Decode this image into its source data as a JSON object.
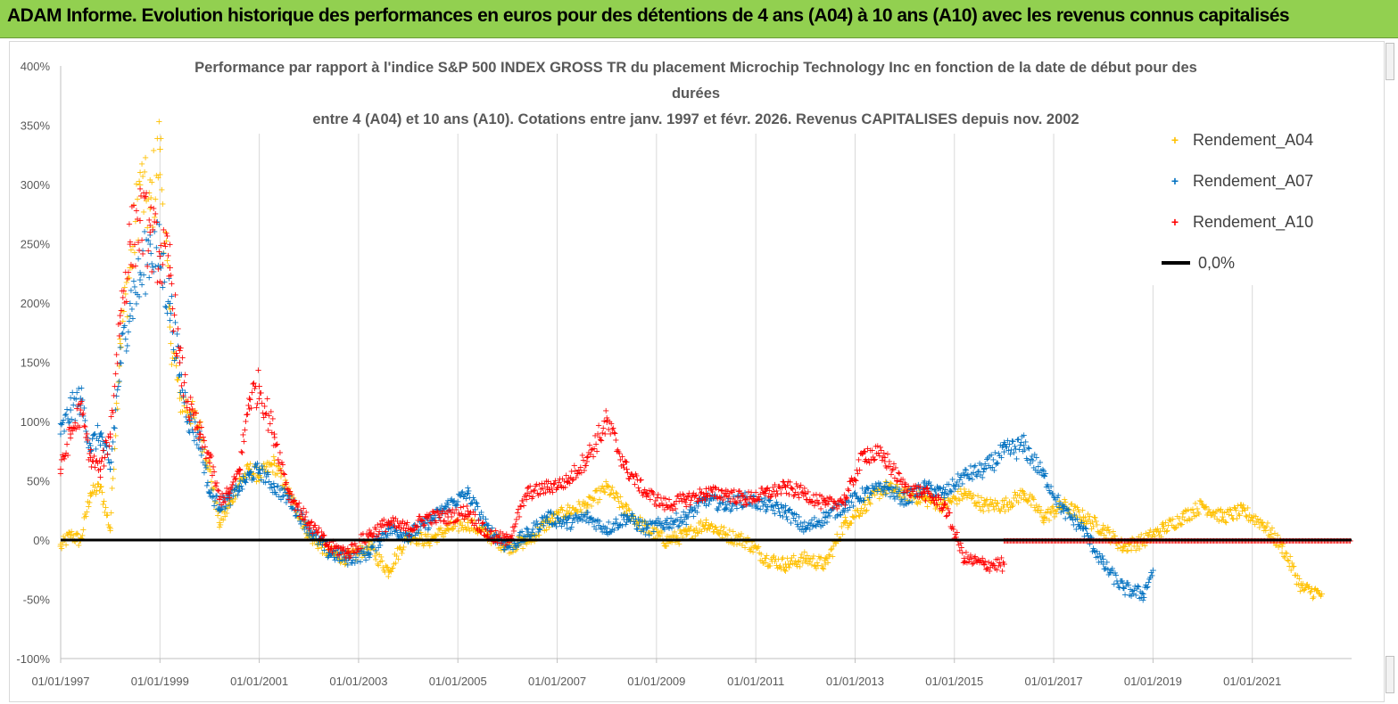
{
  "header": {
    "banner_title": "ADAM Informe. Evolution historique des performances en euros pour des détentions de 4 ans (A04) à 10 ans (A10) avec les revenus connus capitalisés"
  },
  "colors": {
    "banner_bg": "#92d050",
    "A04": "#ffc000",
    "A07": "#0070c0",
    "A10": "#ff0000",
    "zero_line": "#000000",
    "grid": "#d9d9d9"
  },
  "chart_data": {
    "type": "scatter",
    "title_lines": [
      "Performance par rapport à l'indice S&P 500 INDEX GROSS TR  du placement Microchip Technology Inc en fonction de la date de début pour des",
      "durées",
      "entre 4 (A04) et 10 ans (A10). Cotations entre janv. 1997 et févr. 2026. Revenus CAPITALISES depuis nov. 2002"
    ],
    "x_unit": "year",
    "xlim": [
      1997.0,
      2023.0
    ],
    "x_tick_labels": [
      "01/01/1997",
      "01/01/1999",
      "01/01/2001",
      "01/01/2003",
      "01/01/2005",
      "01/01/2007",
      "01/01/2009",
      "01/01/2011",
      "01/01/2013",
      "01/01/2015",
      "01/01/2017",
      "01/01/2019",
      "01/01/2021"
    ],
    "x_tick_values": [
      1997,
      1999,
      2001,
      2003,
      2005,
      2007,
      2009,
      2011,
      2013,
      2015,
      2017,
      2019,
      2021
    ],
    "ylim": [
      -100,
      400
    ],
    "y_tick_values": [
      -100,
      -50,
      0,
      50,
      100,
      150,
      200,
      250,
      300,
      350,
      400
    ],
    "y_tick_labels": [
      "-100%",
      "-50%",
      "0%",
      "50%",
      "100%",
      "150%",
      "200%",
      "250%",
      "300%",
      "350%",
      "400%"
    ],
    "grid": "vertical",
    "legend_position": "top-right",
    "series": [
      {
        "name": "Rendement_A04",
        "marker": "+",
        "x": [
          1997.0,
          1997.2,
          1997.4,
          1997.6,
          1997.8,
          1998.0,
          1998.2,
          1998.4,
          1998.6,
          1998.8,
          1999.0,
          1999.2,
          1999.4,
          1999.6,
          1999.8,
          2000.0,
          2000.2,
          2000.4,
          2000.6,
          2000.8,
          2001.0,
          2001.3,
          2001.6,
          2002.0,
          2002.4,
          2002.8,
          2003.2,
          2003.6,
          2004.0,
          2004.4,
          2004.8,
          2005.2,
          2005.6,
          2006.0,
          2006.4,
          2006.8,
          2007.2,
          2007.6,
          2008.0,
          2008.4,
          2008.8,
          2009.2,
          2009.6,
          2010.0,
          2010.4,
          2010.8,
          2011.2,
          2011.6,
          2012.0,
          2012.4,
          2012.8,
          2013.2,
          2013.6,
          2014.0,
          2014.4,
          2014.8,
          2015.2,
          2015.6,
          2016.0,
          2016.4,
          2016.8,
          2017.2,
          2017.6,
          2018.0,
          2018.4,
          2018.8,
          2019.2,
          2019.6,
          2020.0,
          2020.4,
          2020.8,
          2021.2,
          2021.6,
          2022.0,
          2022.4
        ],
        "values": [
          -5,
          5,
          0,
          40,
          45,
          10,
          170,
          230,
          300,
          280,
          330,
          180,
          120,
          110,
          95,
          60,
          15,
          30,
          50,
          60,
          55,
          65,
          40,
          5,
          -10,
          -15,
          -5,
          -25,
          5,
          0,
          10,
          15,
          5,
          -5,
          0,
          15,
          25,
          30,
          45,
          25,
          10,
          0,
          5,
          15,
          5,
          0,
          -15,
          -20,
          -15,
          -20,
          15,
          30,
          45,
          40,
          35,
          30,
          40,
          30,
          30,
          40,
          20,
          30,
          20,
          10,
          -5,
          0,
          10,
          20,
          30,
          20,
          25,
          15,
          -5,
          -40,
          -45
        ]
      },
      {
        "name": "Rendement_A07",
        "marker": "+",
        "x": [
          1997.0,
          1997.2,
          1997.4,
          1997.6,
          1997.8,
          1998.0,
          1998.2,
          1998.4,
          1998.6,
          1998.8,
          1999.0,
          1999.2,
          1999.4,
          1999.6,
          1999.8,
          2000.0,
          2000.2,
          2000.4,
          2000.6,
          2000.8,
          2001.0,
          2001.3,
          2001.6,
          2002.0,
          2002.4,
          2002.8,
          2003.2,
          2003.6,
          2004.0,
          2004.4,
          2004.8,
          2005.2,
          2005.6,
          2006.0,
          2006.4,
          2006.8,
          2007.2,
          2007.6,
          2008.0,
          2008.4,
          2008.8,
          2009.2,
          2009.6,
          2010.0,
          2010.4,
          2010.8,
          2011.2,
          2011.6,
          2012.0,
          2012.4,
          2012.8,
          2013.2,
          2013.6,
          2014.0,
          2014.4,
          2014.8,
          2015.2,
          2015.6,
          2016.0,
          2016.4,
          2016.8,
          2017.2,
          2017.6,
          2018.0,
          2018.4,
          2018.8,
          2019.0
        ],
        "values": [
          90,
          110,
          120,
          80,
          90,
          60,
          150,
          200,
          220,
          250,
          240,
          200,
          140,
          100,
          85,
          40,
          30,
          35,
          45,
          55,
          60,
          45,
          35,
          10,
          -10,
          -15,
          -10,
          10,
          5,
          15,
          30,
          40,
          10,
          -5,
          5,
          20,
          15,
          20,
          10,
          20,
          10,
          15,
          20,
          35,
          30,
          35,
          30,
          25,
          10,
          20,
          30,
          40,
          45,
          35,
          45,
          40,
          55,
          60,
          75,
          80,
          55,
          25,
          10,
          -20,
          -40,
          -45,
          -25
        ]
      },
      {
        "name": "Rendement_A10",
        "marker": "+",
        "x": [
          1997.0,
          1997.2,
          1997.4,
          1997.6,
          1997.8,
          1998.0,
          1998.2,
          1998.4,
          1998.6,
          1998.8,
          1999.0,
          1999.2,
          1999.4,
          1999.6,
          1999.8,
          2000.0,
          2000.2,
          2000.4,
          2000.6,
          2000.8,
          2001.0,
          2001.3,
          2001.6,
          2002.0,
          2002.4,
          2002.8,
          2003.2,
          2003.6,
          2004.0,
          2004.4,
          2004.8,
          2005.2,
          2005.6,
          2006.0,
          2006.4,
          2006.8,
          2007.2,
          2007.6,
          2008.0,
          2008.4,
          2008.8,
          2009.2,
          2009.6,
          2010.0,
          2010.4,
          2010.8,
          2011.2,
          2011.6,
          2012.0,
          2012.4,
          2012.8,
          2013.2,
          2013.6,
          2014.0,
          2014.4,
          2014.8,
          2015.2,
          2015.6,
          2016.0
        ],
        "values": [
          60,
          90,
          110,
          70,
          60,
          90,
          190,
          250,
          270,
          260,
          240,
          230,
          150,
          110,
          90,
          70,
          35,
          40,
          60,
          120,
          130,
          90,
          40,
          15,
          -5,
          -10,
          5,
          15,
          10,
          20,
          20,
          25,
          5,
          0,
          40,
          45,
          50,
          70,
          100,
          60,
          40,
          30,
          35,
          40,
          40,
          35,
          40,
          45,
          40,
          30,
          35,
          75,
          70,
          45,
          40,
          30,
          -15,
          -20,
          -20
        ]
      },
      {
        "name": "0,0%",
        "type": "line",
        "x": [
          1997.0,
          2023.0
        ],
        "values": [
          0,
          0
        ]
      }
    ]
  },
  "legend": {
    "items": [
      {
        "label": "Rendement_A04",
        "symbol": "+"
      },
      {
        "label": "Rendement_A07",
        "symbol": "+"
      },
      {
        "label": "Rendement_A10",
        "symbol": "+"
      },
      {
        "label": "0,0%",
        "symbol": "line"
      }
    ]
  }
}
